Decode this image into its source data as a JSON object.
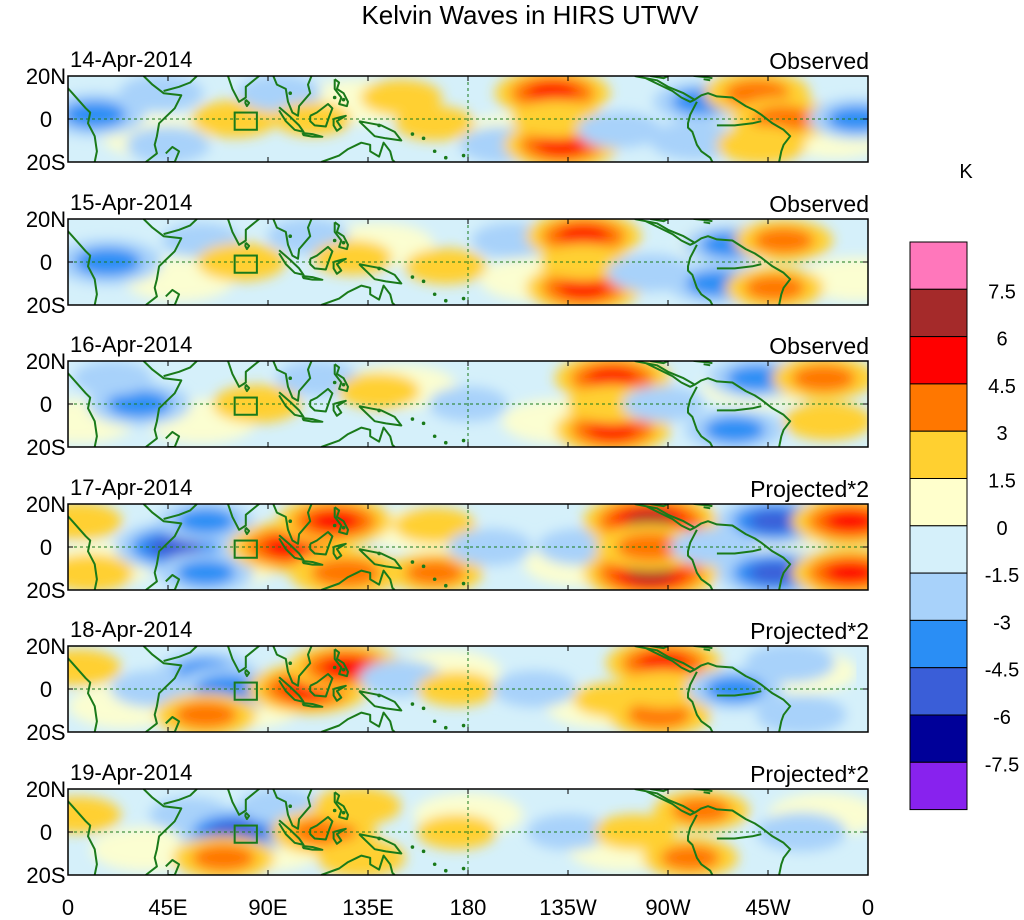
{
  "chart_data": {
    "type": "heatmap",
    "title": "Kelvin Waves in HIRS UTWV",
    "units": "K",
    "x_axis": {
      "ticks": [
        {
          "lon": 0,
          "label": "0"
        },
        {
          "lon": 45,
          "label": "45E"
        },
        {
          "lon": 90,
          "label": "90E"
        },
        {
          "lon": 135,
          "label": "135E"
        },
        {
          "lon": 180,
          "label": "180"
        },
        {
          "lon": 225,
          "label": "135W"
        },
        {
          "lon": 270,
          "label": "90W"
        },
        {
          "lon": 315,
          "label": "45W"
        },
        {
          "lon": 360,
          "label": "0"
        }
      ],
      "range": [
        0,
        360
      ]
    },
    "y_axis": {
      "ticks": [
        {
          "lat": 20,
          "label": "20N"
        },
        {
          "lat": 0,
          "label": "0"
        },
        {
          "lat": -20,
          "label": "20S"
        }
      ],
      "range": [
        -20,
        20
      ]
    },
    "colorbar": {
      "levels": [
        "7.5",
        "6",
        "4.5",
        "3",
        "1.5",
        "0",
        "-1.5",
        "-3",
        "-4.5",
        "-6",
        "-7.5"
      ],
      "colors": [
        "#ff77bb",
        "#a52a2a",
        "#ff0000",
        "#ff7700",
        "#ffd030",
        "#ffffcc",
        "#d5f0fa",
        "#a8d2fa",
        "#2a8ef5",
        "#3a5ed8",
        "#000099",
        "#8822ee"
      ]
    },
    "panels": [
      {
        "date": "14-Apr-2014",
        "label": "Observed",
        "features": [
          {
            "lon": 12,
            "lat": 2,
            "value": -3.5
          },
          {
            "lon": 42,
            "lat": 12,
            "value": -2
          },
          {
            "lon": 45,
            "lat": -12,
            "value": -2
          },
          {
            "lon": 75,
            "lat": 0,
            "value": 2.2
          },
          {
            "lon": 95,
            "lat": 12,
            "value": -2
          },
          {
            "lon": 110,
            "lat": 0,
            "value": 1.5
          },
          {
            "lon": 150,
            "lat": 10,
            "value": 1.8
          },
          {
            "lon": 165,
            "lat": -2,
            "value": 1.6
          },
          {
            "lon": 195,
            "lat": -12,
            "value": -2
          },
          {
            "lon": 218,
            "lat": 12,
            "value": 4.6
          },
          {
            "lon": 222,
            "lat": -12,
            "value": 4.6
          },
          {
            "lon": 220,
            "lat": 0,
            "value": 2.5
          },
          {
            "lon": 248,
            "lat": -5,
            "value": -2
          },
          {
            "lon": 285,
            "lat": 8,
            "value": -3
          },
          {
            "lon": 282,
            "lat": -10,
            "value": -2.5
          },
          {
            "lon": 310,
            "lat": 12,
            "value": 3.8
          },
          {
            "lon": 322,
            "lat": 0,
            "value": 3.5
          },
          {
            "lon": 312,
            "lat": -12,
            "value": 2.5
          },
          {
            "lon": 355,
            "lat": 0,
            "value": -3
          }
        ]
      },
      {
        "date": "15-Apr-2014",
        "label": "Observed",
        "features": [
          {
            "lon": 18,
            "lat": 0,
            "value": -4
          },
          {
            "lon": 60,
            "lat": 10,
            "value": -1.6
          },
          {
            "lon": 78,
            "lat": 0,
            "value": 2.4
          },
          {
            "lon": 108,
            "lat": 12,
            "value": -1.8
          },
          {
            "lon": 128,
            "lat": 2,
            "value": 1.6
          },
          {
            "lon": 170,
            "lat": -2,
            "value": 1.8
          },
          {
            "lon": 200,
            "lat": 10,
            "value": -1.8
          },
          {
            "lon": 232,
            "lat": 12,
            "value": 4.6
          },
          {
            "lon": 232,
            "lat": -12,
            "value": 4.6
          },
          {
            "lon": 232,
            "lat": 0,
            "value": 2.2
          },
          {
            "lon": 262,
            "lat": -5,
            "value": -2.2
          },
          {
            "lon": 298,
            "lat": 8,
            "value": -3
          },
          {
            "lon": 292,
            "lat": -10,
            "value": -3.2
          },
          {
            "lon": 322,
            "lat": 10,
            "value": 3.2
          },
          {
            "lon": 318,
            "lat": -12,
            "value": 3.2
          }
        ]
      },
      {
        "date": "16-Apr-2014",
        "label": "Observed",
        "features": [
          {
            "lon": 32,
            "lat": 0,
            "value": -3.6
          },
          {
            "lon": 20,
            "lat": 12,
            "value": -1.6
          },
          {
            "lon": 85,
            "lat": 0,
            "value": 2.4
          },
          {
            "lon": 112,
            "lat": 12,
            "value": -1.8
          },
          {
            "lon": 140,
            "lat": 6,
            "value": 1.8
          },
          {
            "lon": 180,
            "lat": 0,
            "value": -1.6
          },
          {
            "lon": 245,
            "lat": 12,
            "value": 4.6
          },
          {
            "lon": 245,
            "lat": -12,
            "value": 4.6
          },
          {
            "lon": 245,
            "lat": 0,
            "value": 2.5
          },
          {
            "lon": 268,
            "lat": 0,
            "value": -1.8
          },
          {
            "lon": 310,
            "lat": 12,
            "value": -3.2
          },
          {
            "lon": 300,
            "lat": -12,
            "value": -3.2
          },
          {
            "lon": 340,
            "lat": 12,
            "value": 3.6
          },
          {
            "lon": 342,
            "lat": -8,
            "value": 2.4
          }
        ]
      },
      {
        "date": "17-Apr-2014",
        "label": "Projected*2",
        "features": [
          {
            "lon": 5,
            "lat": 12,
            "value": 2.2
          },
          {
            "lon": 10,
            "lat": -12,
            "value": 2.2
          },
          {
            "lon": 48,
            "lat": 0,
            "value": -5
          },
          {
            "lon": 62,
            "lat": 12,
            "value": -3
          },
          {
            "lon": 62,
            "lat": -12,
            "value": -3
          },
          {
            "lon": 100,
            "lat": 0,
            "value": 5.2
          },
          {
            "lon": 120,
            "lat": 12,
            "value": 4.6
          },
          {
            "lon": 125,
            "lat": -12,
            "value": 4.4
          },
          {
            "lon": 165,
            "lat": -12,
            "value": 3
          },
          {
            "lon": 165,
            "lat": 10,
            "value": 1.8
          },
          {
            "lon": 190,
            "lat": 0,
            "value": -2
          },
          {
            "lon": 230,
            "lat": 0,
            "value": -2
          },
          {
            "lon": 262,
            "lat": 12,
            "value": 6.2
          },
          {
            "lon": 262,
            "lat": -12,
            "value": 6.2
          },
          {
            "lon": 262,
            "lat": 0,
            "value": 4.2
          },
          {
            "lon": 290,
            "lat": 0,
            "value": -2
          },
          {
            "lon": 318,
            "lat": 12,
            "value": -4.6
          },
          {
            "lon": 318,
            "lat": -12,
            "value": -4.6
          },
          {
            "lon": 352,
            "lat": 12,
            "value": 4.8
          },
          {
            "lon": 352,
            "lat": -12,
            "value": 4.8
          }
        ]
      },
      {
        "date": "18-Apr-2014",
        "label": "Projected*2",
        "features": [
          {
            "lon": 5,
            "lat": 10,
            "value": 2
          },
          {
            "lon": 38,
            "lat": 0,
            "value": -2
          },
          {
            "lon": 62,
            "lat": 8,
            "value": -3
          },
          {
            "lon": 72,
            "lat": 0,
            "value": -4
          },
          {
            "lon": 62,
            "lat": -12,
            "value": 3.5
          },
          {
            "lon": 108,
            "lat": 0,
            "value": 5
          },
          {
            "lon": 125,
            "lat": 10,
            "value": 4.6
          },
          {
            "lon": 150,
            "lat": 5,
            "value": -2
          },
          {
            "lon": 175,
            "lat": 0,
            "value": 1.6
          },
          {
            "lon": 210,
            "lat": 0,
            "value": -2
          },
          {
            "lon": 245,
            "lat": -5,
            "value": 1.6
          },
          {
            "lon": 268,
            "lat": 12,
            "value": 4.6
          },
          {
            "lon": 266,
            "lat": -12,
            "value": 3.6
          },
          {
            "lon": 268,
            "lat": 0,
            "value": 2.4
          },
          {
            "lon": 300,
            "lat": 0,
            "value": -3
          },
          {
            "lon": 325,
            "lat": 12,
            "value": -2.5
          },
          {
            "lon": 330,
            "lat": -12,
            "value": -2.5
          }
        ]
      },
      {
        "date": "19-Apr-2014",
        "label": "Projected*2",
        "features": [
          {
            "lon": 5,
            "lat": 8,
            "value": 2
          },
          {
            "lon": 55,
            "lat": 8,
            "value": -1.8
          },
          {
            "lon": 75,
            "lat": 0,
            "value": -4.6
          },
          {
            "lon": 70,
            "lat": -12,
            "value": 3.5
          },
          {
            "lon": 95,
            "lat": 12,
            "value": -1.8
          },
          {
            "lon": 115,
            "lat": 0,
            "value": 3.8
          },
          {
            "lon": 130,
            "lat": 12,
            "value": 2.4
          },
          {
            "lon": 132,
            "lat": -12,
            "value": 2.4
          },
          {
            "lon": 175,
            "lat": 0,
            "value": 1.6
          },
          {
            "lon": 225,
            "lat": 0,
            "value": -1.8
          },
          {
            "lon": 255,
            "lat": 0,
            "value": 1.8
          },
          {
            "lon": 285,
            "lat": 10,
            "value": 3
          },
          {
            "lon": 280,
            "lat": -12,
            "value": 3
          },
          {
            "lon": 330,
            "lat": 0,
            "value": -2.5
          }
        ]
      }
    ],
    "overlays": [
      "coastlines",
      "equator dashed line",
      "180 meridian dashed line",
      "reference box near 80E"
    ]
  }
}
